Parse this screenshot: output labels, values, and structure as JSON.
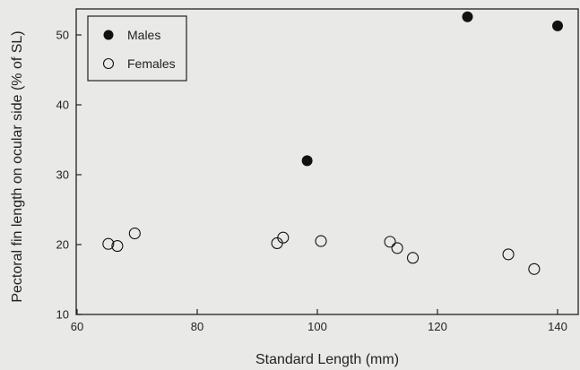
{
  "chart_data": {
    "type": "scatter",
    "title": "",
    "xlabel": "Standard Length (mm)",
    "ylabel": "Pectoral fin length on ocular side (% of SL)",
    "xlim": [
      60,
      145
    ],
    "ylim": [
      10,
      55
    ],
    "x_ticks": [
      60,
      80,
      100,
      120,
      140
    ],
    "y_ticks": [
      10,
      20,
      30,
      40,
      50
    ],
    "grid": false,
    "legend_position": "top-left",
    "series": [
      {
        "name": "Males",
        "marker": "filled-circle",
        "color": "#111111",
        "x": [
          98.3,
          125.0,
          140.0
        ],
        "y": [
          32.0,
          52.6,
          51.3
        ]
      },
      {
        "name": "Females",
        "marker": "open-circle",
        "color": "#111111",
        "x": [
          65.2,
          66.7,
          69.6,
          93.3,
          94.3,
          100.6,
          112.1,
          113.3,
          115.9,
          131.8,
          136.1
        ],
        "y": [
          20.1,
          19.8,
          21.6,
          20.2,
          21.0,
          20.5,
          20.4,
          19.5,
          18.1,
          18.6,
          16.5
        ]
      }
    ]
  }
}
